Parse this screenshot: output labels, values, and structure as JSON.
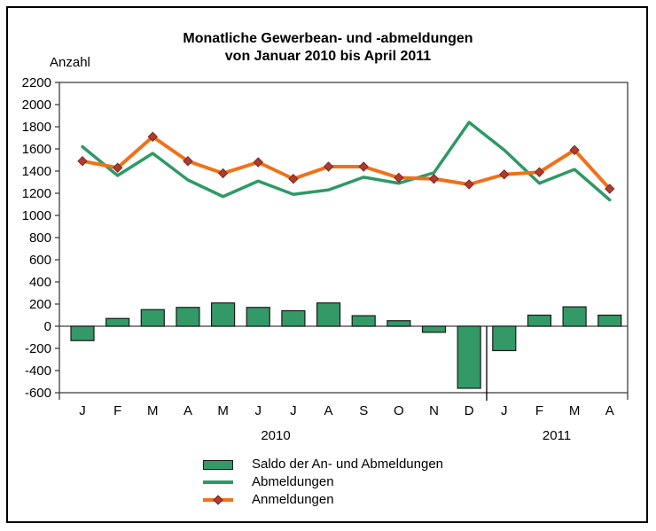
{
  "window": {
    "background_color": "#ffffff",
    "frame_color": "#000000",
    "plot_border_color": "#3f3f3f"
  },
  "chart": {
    "title_line1": "Monatliche Gewerbean- und -abmeldungen",
    "title_line2": "von Januar 2010 bis April 2011",
    "y_axis_label": "Anzahl"
  },
  "chart_data": {
    "type": "combo-bar-line",
    "title": "Monatliche Gewerbean- und -abmeldungen von Januar 2010 bis April 2011",
    "xlabel": "",
    "ylabel": "Anzahl",
    "ylim": [
      -600,
      2200
    ],
    "ytick_step": 200,
    "grid": false,
    "legend_position": "bottom",
    "categories": [
      "J",
      "F",
      "M",
      "A",
      "M",
      "J",
      "J",
      "A",
      "S",
      "O",
      "N",
      "D",
      "J",
      "F",
      "M",
      "A"
    ],
    "year_groups": [
      {
        "label": "2010",
        "months": 12
      },
      {
        "label": "2011",
        "months": 4
      }
    ],
    "series": [
      {
        "name": "Saldo der An- und Abmeldungen",
        "type": "bar",
        "color": "#339966",
        "border_color": "#1a1a1a",
        "values": [
          -130,
          70,
          150,
          170,
          210,
          170,
          140,
          210,
          95,
          50,
          -55,
          -560,
          -220,
          100,
          175,
          100
        ]
      },
      {
        "name": "Abmeldungen",
        "type": "line",
        "color": "#2E9966",
        "values": [
          1620,
          1360,
          1560,
          1320,
          1170,
          1310,
          1190,
          1230,
          1345,
          1290,
          1385,
          1840,
          1590,
          1290,
          1415,
          1140
        ]
      },
      {
        "name": "Anmeldungen",
        "type": "line",
        "color": "#F07118",
        "marker": "diamond",
        "marker_color": "#B03A30",
        "marker_border_color": "#7E2A1E",
        "values": [
          1490,
          1430,
          1710,
          1490,
          1380,
          1480,
          1330,
          1440,
          1440,
          1340,
          1330,
          1280,
          1370,
          1390,
          1590,
          1240
        ]
      }
    ]
  }
}
